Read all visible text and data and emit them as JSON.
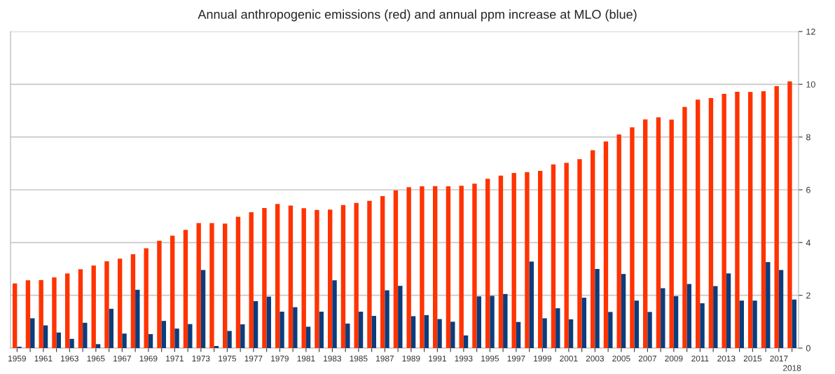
{
  "chart_data": {
    "type": "bar",
    "title": "Annual anthropogenic emissions (red) and annual ppm increase at MLO (blue)",
    "categories": [
      "1959",
      null,
      "1961",
      null,
      "1963",
      null,
      "1965",
      null,
      "1967",
      null,
      "1969",
      null,
      "1971",
      null,
      "1973",
      null,
      "1975",
      null,
      "1977",
      null,
      "1979",
      null,
      "1981",
      null,
      "1983",
      null,
      "1985",
      null,
      "1987",
      null,
      "1989",
      null,
      "1991",
      null,
      "1993",
      null,
      "1995",
      null,
      "1997",
      null,
      "1999",
      null,
      "2001",
      null,
      "2003",
      null,
      "2005",
      null,
      "2007",
      null,
      "2009",
      null,
      "2011",
      null,
      "2013",
      null,
      "2015",
      null,
      "2017",
      "2018"
    ],
    "series": [
      {
        "color": "#ff3300",
        "values": [
          2.45,
          2.57,
          2.58,
          2.68,
          2.83,
          2.99,
          3.13,
          3.29,
          3.39,
          3.56,
          3.78,
          4.07,
          4.26,
          4.48,
          4.74,
          4.74,
          4.72,
          4.98,
          5.15,
          5.31,
          5.46,
          5.4,
          5.3,
          5.24,
          5.25,
          5.42,
          5.5,
          5.58,
          5.76,
          5.98,
          6.1,
          6.13,
          6.14,
          6.13,
          6.15,
          6.23,
          6.42,
          6.54,
          6.64,
          6.67,
          6.72,
          6.96,
          7.02,
          7.16,
          7.5,
          7.83,
          8.1,
          8.37,
          8.67,
          8.75,
          8.66,
          9.14,
          9.42,
          9.48,
          9.64,
          9.72,
          9.71,
          9.74,
          9.93,
          10.11
        ]
      },
      {
        "color": "#0b3c7d",
        "values": [
          0.05,
          1.13,
          0.86,
          0.59,
          0.35,
          0.96,
          0.15,
          1.49,
          0.55,
          2.21,
          0.53,
          1.03,
          0.74,
          0.91,
          2.96,
          0.08,
          0.65,
          0.9,
          1.78,
          1.95,
          1.38,
          1.55,
          0.81,
          1.38,
          2.57,
          0.93,
          1.38,
          1.22,
          2.19,
          2.36,
          1.21,
          1.25,
          1.1,
          1.0,
          0.48,
          1.96,
          1.98,
          2.05,
          0.99,
          3.28,
          1.13,
          1.51,
          1.09,
          1.91,
          3.0,
          1.37,
          2.81,
          1.8,
          1.37,
          2.27,
          1.97,
          2.43,
          1.7,
          2.35,
          2.83,
          1.8,
          1.8,
          3.26,
          2.96,
          1.84
        ]
      }
    ],
    "ylim": [
      0,
      12
    ],
    "yticks": [
      0,
      2,
      4,
      6,
      8,
      10,
      12
    ],
    "grid": "y"
  }
}
